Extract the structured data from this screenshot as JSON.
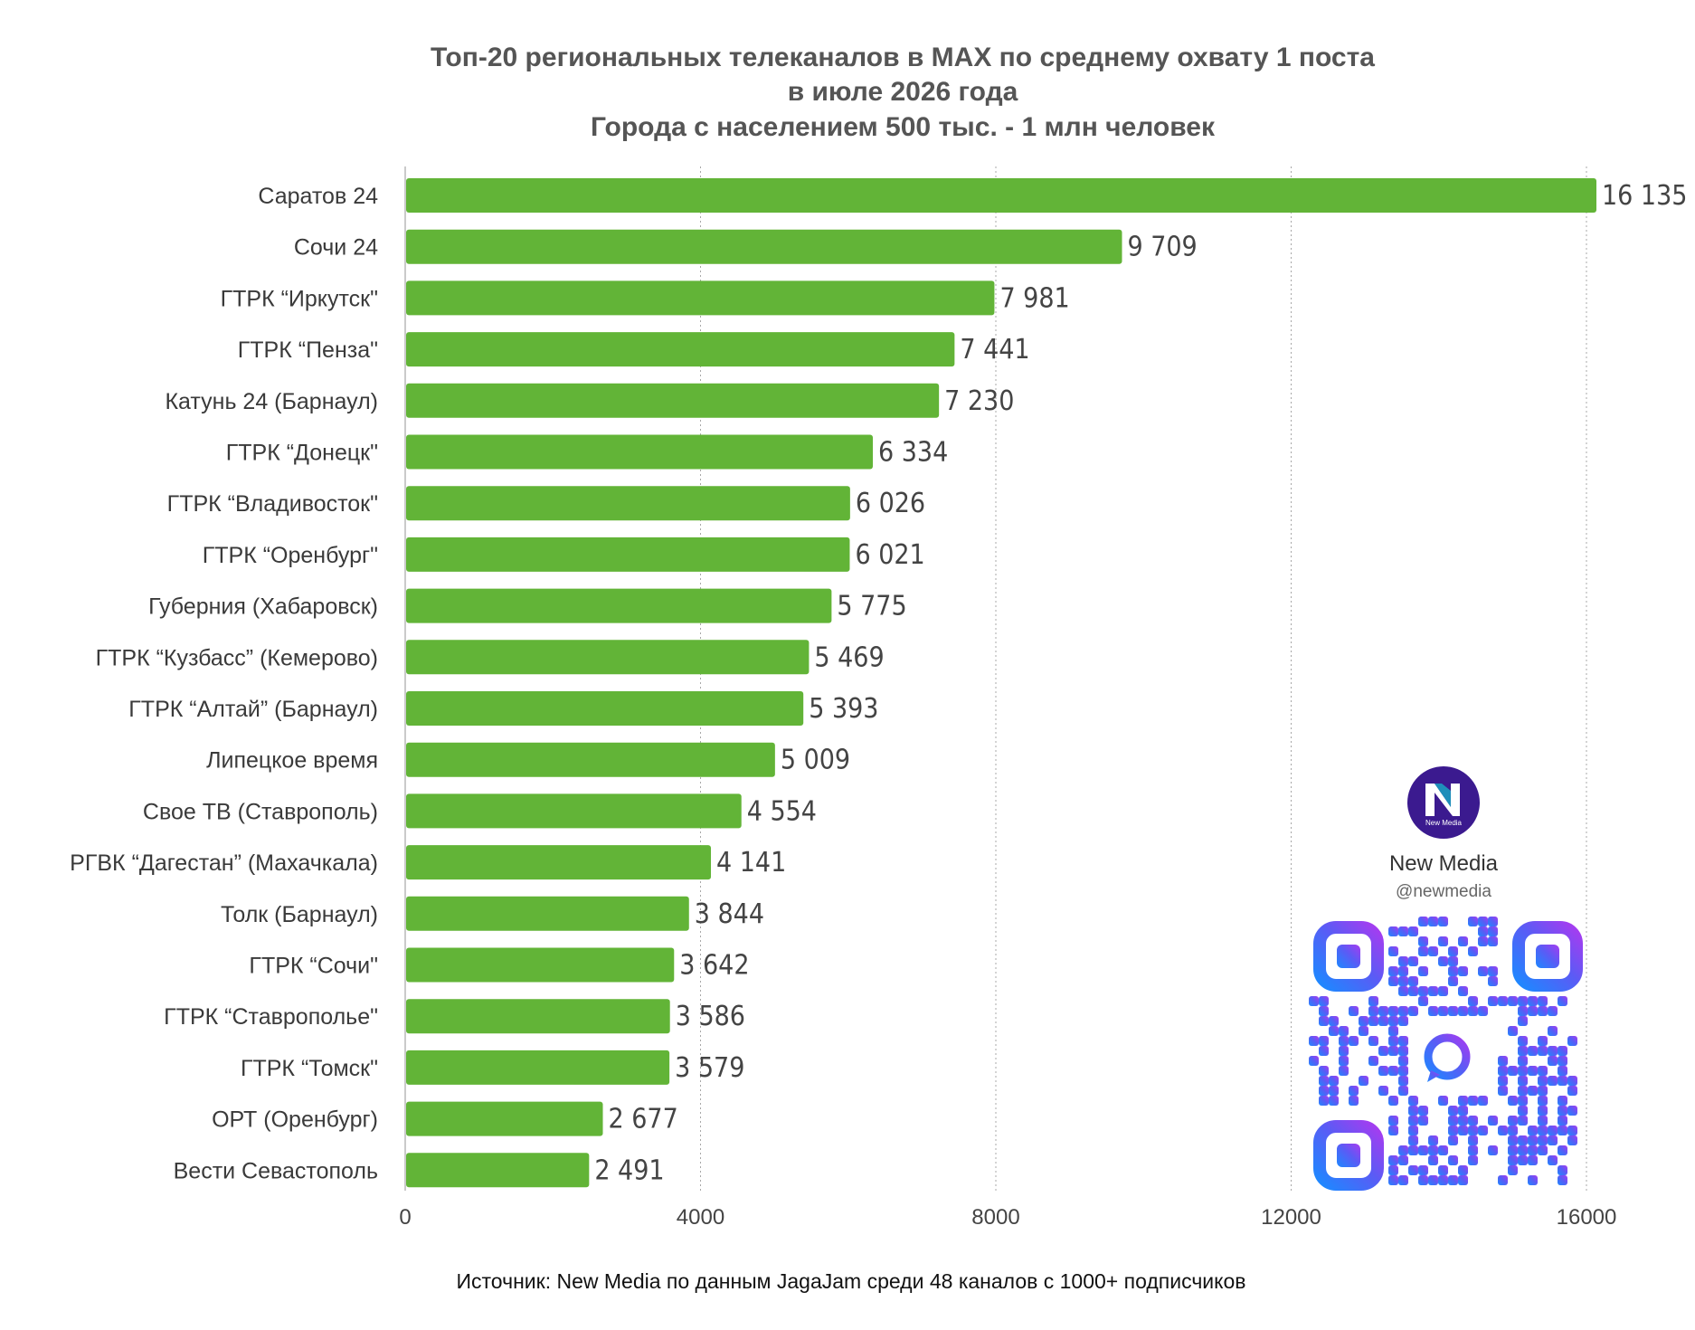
{
  "chart_data": {
    "type": "bar",
    "orientation": "horizontal",
    "title": [
      "Топ-20 региональных телеканалов в MAX по среднему охвату 1 поста",
      "в июле 2026 года",
      "Города с населением 500 тыс. - 1 млн человек"
    ],
    "categories": [
      "Саратов 24",
      "Сочи 24",
      "ГТРК “Иркутск\"",
      "ГТРК “Пенза\"",
      "Катунь 24 (Барнаул)",
      "ГТРК “Донецк\"",
      "ГТРК “Владивосток\"",
      "ГТРК “Оренбург\"",
      "Губерния (Хабаровск)",
      "ГТРК “Кузбасс” (Кемерово)",
      "ГТРК “Алтай” (Барнаул)",
      "Липецкое время",
      "Свое ТВ (Ставрополь)",
      "РГВК “Дагестан” (Махачкала)",
      "Толк (Барнаул)",
      "ГТРК “Сочи\"",
      "ГТРК “Ставрополье\"",
      "ГТРК “Томск\"",
      "ОРТ (Оренбург)",
      "Вести Севастополь"
    ],
    "values": [
      16135,
      9709,
      7981,
      7441,
      7230,
      6334,
      6026,
      6021,
      5775,
      5469,
      5393,
      5009,
      4554,
      4141,
      3844,
      3642,
      3586,
      3579,
      2677,
      2491
    ],
    "value_labels": [
      "16 135",
      "9 709",
      "7 981",
      "7 441",
      "7 230",
      "6 334",
      "6 026",
      "6 021",
      "5 775",
      "5 469",
      "5 393",
      "5 009",
      "4 554",
      "4 141",
      "3 844",
      "3 642",
      "3 586",
      "3 579",
      "2 677",
      "2 491"
    ],
    "xlim": [
      0,
      16000
    ],
    "xticks": [
      0,
      4000,
      8000,
      12000,
      16000
    ],
    "xtick_labels": [
      "0",
      "4000",
      "8000",
      "12000",
      "16000"
    ],
    "grid": "vertical dotted",
    "bar_color": "#62b437",
    "source": "Источник: New Media по данным JagaJam среди 48 каналов с 1000+ подписчиков"
  },
  "brand": {
    "name": "New Media",
    "handle": "@newmedia",
    "logo_text": "New Media",
    "logo_color": "#3b1a8f",
    "qr_colors": [
      "#1e88ff",
      "#5b5bf5",
      "#a63cf0"
    ]
  }
}
